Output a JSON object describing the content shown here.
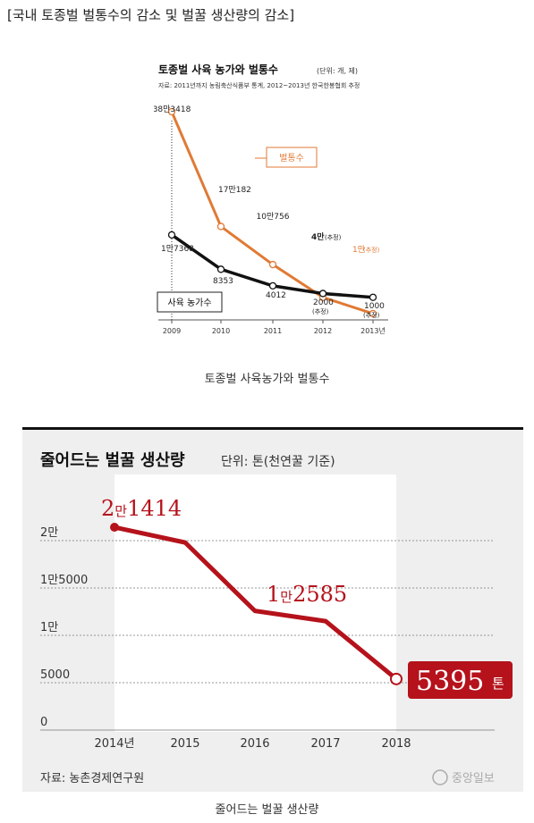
{
  "page": {
    "heading": "[국내 토종벌 벌통수의 감소 및 벌꿀 생산량의 감소]",
    "caption1": "토종벌 사육농가와 벌통수",
    "caption2": "줄어드는 벌꿀 생산량"
  },
  "colors": {
    "orange": "#e07a35",
    "black": "#111111",
    "crimson": "#b5121b",
    "panel": "#efefef"
  },
  "chart_data": [
    {
      "type": "line",
      "title": "토종벌 사육 농가와 벌통수",
      "unit": "(단위: 개, 제)",
      "source": "자료: 2011년까지 농림축산식품부 통계, 2012~2013년 한국한봉협회 추정",
      "categories": [
        "2009",
        "2010",
        "2011",
        "2012",
        "2013년"
      ],
      "series": [
        {
          "name": "벌통수",
          "values": [
            383418,
            171182,
            100756,
            40000,
            10000
          ],
          "labels": [
            "38만3418",
            "17만182",
            "10만756",
            "4만",
            "1만"
          ],
          "estimated_tag": "(추정)"
        },
        {
          "name": "사육 농가수",
          "values": [
            17368,
            8353,
            4012,
            2000,
            1000
          ],
          "labels": [
            "1만7368",
            "8353",
            "4012",
            "2000",
            "1000"
          ],
          "estimated_tag": "(추정)"
        }
      ]
    },
    {
      "type": "line",
      "title": "줄어드는 벌꿀 생산량",
      "subtitle": "단위: 톤(천연꿀 기준)",
      "source": "자료: 농촌경제연구원",
      "logo": "중앙일보",
      "categories": [
        "2014년",
        "2015",
        "2016",
        "2017",
        "2018"
      ],
      "ylim": [
        0,
        20000
      ],
      "yticks": [
        {
          "value": 0,
          "label": "0"
        },
        {
          "value": 5000,
          "label": "5000"
        },
        {
          "value": 10000,
          "label": "1만"
        },
        {
          "value": 15000,
          "label": "1만5000"
        },
        {
          "value": 20000,
          "label": "2만"
        }
      ],
      "series": [
        {
          "values": [
            21414,
            19800,
            12585,
            11500,
            5395
          ]
        }
      ],
      "annotations": [
        {
          "index": 0,
          "prefix": "2",
          "unit_word": "만",
          "number": "1414"
        },
        {
          "index": 2,
          "prefix": "1",
          "unit_word": "만",
          "number": "2585"
        },
        {
          "index": 4,
          "number": "5395",
          "unit_word": "톤"
        }
      ]
    }
  ]
}
